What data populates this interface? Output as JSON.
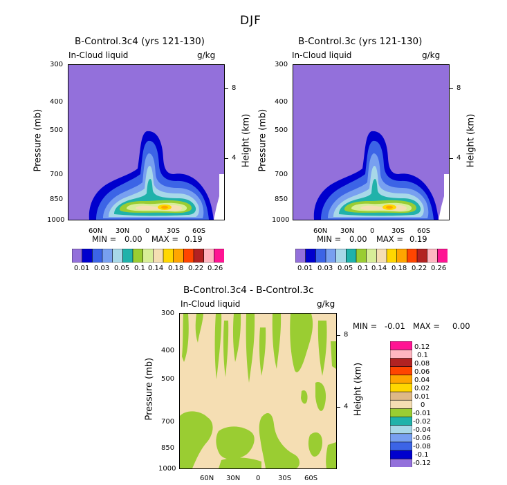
{
  "figure_title": "DJF",
  "colors": {
    "top_palette": [
      "#9370db",
      "#0000cd",
      "#3c64e6",
      "#78a0f0",
      "#a8d8e8",
      "#20b2aa",
      "#9acd32",
      "#d8ee98",
      "#f5deb3",
      "#ffd700",
      "#ffa500",
      "#ff4500",
      "#b22222",
      "#ffb6c1",
      "#ff1493"
    ],
    "diff_palette": [
      "#9370db",
      "#0000cd",
      "#3c64e6",
      "#78a0f0",
      "#a8d8e8",
      "#20b2aa",
      "#9acd32",
      "#f5deb3",
      "#deb887",
      "#ffd700",
      "#ffa500",
      "#ff4500",
      "#b22222",
      "#ffb6c1",
      "#ff1493"
    ]
  },
  "panels": [
    {
      "title": "B-Control.3c4 (yrs 121-130)",
      "variable": "In-Cloud liquid",
      "units": "g/kg",
      "ylabel": "Pressure (mb)",
      "y2label": "Height (km)",
      "min_label": "MIN =",
      "min_value": "0.00",
      "max_label": "MAX =",
      "max_value": "0.19"
    },
    {
      "title": "B-Control.3c (yrs 121-130)",
      "variable": "In-Cloud liquid",
      "units": "g/kg",
      "ylabel": "Pressure (mb)",
      "y2label": "Height (km)",
      "min_label": "MIN =",
      "min_value": "0.00",
      "max_label": "MAX =",
      "max_value": "0.19"
    },
    {
      "title": "B-Control.3c4 - B-Control.3c",
      "variable": "In-Cloud liquid",
      "units": "g/kg",
      "ylabel": "Pressure (mb)",
      "y2label": "Height (km)",
      "min_label": "MIN =",
      "min_value": "-0.01",
      "max_label": "MAX =",
      "max_value": "0.00"
    }
  ],
  "chart_data": [
    {
      "type": "heatmap",
      "title": "B-Control.3c4 (yrs 121-130)",
      "field": "In-Cloud liquid (g/kg)",
      "x_ticks": [
        "60N",
        "30N",
        "0",
        "30S",
        "60S"
      ],
      "y_ticks": [
        "300",
        "400",
        "500",
        "700",
        "850",
        "1000"
      ],
      "y_range_mb": [
        1000,
        300
      ],
      "y2_ticks": [
        "8",
        "4"
      ],
      "colorbar_levels": [
        "0.01",
        "0.03",
        "0.05",
        "0.1",
        "0.14",
        "0.18",
        "0.22",
        "0.26"
      ],
      "contour_levels": [
        0.01,
        0.02,
        0.03,
        0.04,
        0.05,
        0.08,
        0.1,
        0.12,
        0.14,
        0.16,
        0.18,
        0.2,
        0.22,
        0.24,
        0.26
      ],
      "min": 0.0,
      "max": 0.19
    },
    {
      "type": "heatmap",
      "title": "B-Control.3c (yrs 121-130)",
      "field": "In-Cloud liquid (g/kg)",
      "x_ticks": [
        "60N",
        "30N",
        "0",
        "30S",
        "60S"
      ],
      "y_ticks": [
        "300",
        "400",
        "500",
        "700",
        "850",
        "1000"
      ],
      "y_range_mb": [
        1000,
        300
      ],
      "y2_ticks": [
        "8",
        "4"
      ],
      "colorbar_levels": [
        "0.01",
        "0.03",
        "0.05",
        "0.1",
        "0.14",
        "0.18",
        "0.22",
        "0.26"
      ],
      "contour_levels": [
        0.01,
        0.02,
        0.03,
        0.04,
        0.05,
        0.08,
        0.1,
        0.12,
        0.14,
        0.16,
        0.18,
        0.2,
        0.22,
        0.24,
        0.26
      ],
      "min": 0.0,
      "max": 0.19
    },
    {
      "type": "heatmap",
      "title": "B-Control.3c4 - B-Control.3c",
      "field": "In-Cloud liquid difference (g/kg)",
      "x_ticks": [
        "60N",
        "30N",
        "0",
        "30S",
        "60S"
      ],
      "y_ticks": [
        "300",
        "400",
        "500",
        "700",
        "850",
        "1000"
      ],
      "y_range_mb": [
        1000,
        300
      ],
      "y2_ticks": [
        "8",
        "4"
      ],
      "colorbar_levels": [
        "0.12",
        "0.1",
        "0.08",
        "0.06",
        "0.04",
        "0.02",
        "0.01",
        "0",
        "-0.01",
        "-0.02",
        "-0.04",
        "-0.06",
        "-0.08",
        "-0.1",
        "-0.12"
      ],
      "min": -0.01,
      "max": 0.0
    }
  ]
}
